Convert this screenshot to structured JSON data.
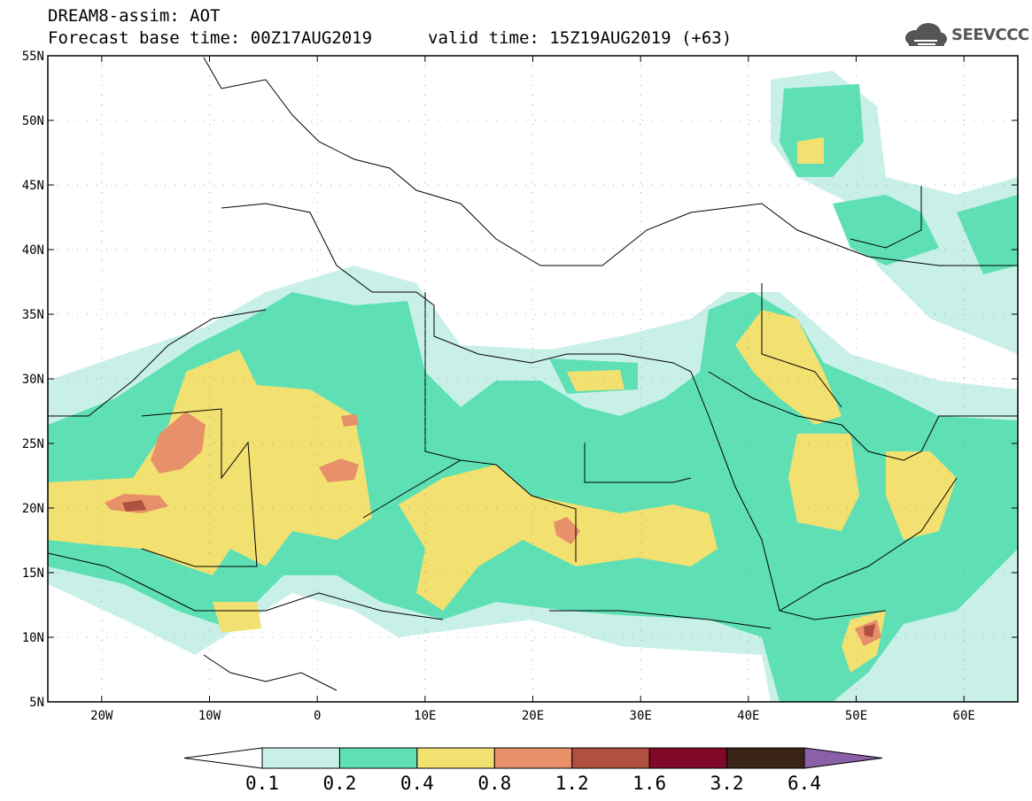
{
  "header": {
    "model_title": "DREAM8-assim: AOT",
    "forecast_base": "Forecast base time: 00Z17AUG2019",
    "valid_time": "valid time: 15Z19AUG2019 (+63)",
    "logo_text": "SEEVCCC"
  },
  "map": {
    "lon_range": [
      -25,
      65
    ],
    "lat_range": [
      5,
      55
    ],
    "lat_ticks": [
      {
        "lat": 55,
        "label": "55N"
      },
      {
        "lat": 50,
        "label": "50N"
      },
      {
        "lat": 45,
        "label": "45N"
      },
      {
        "lat": 40,
        "label": "40N"
      },
      {
        "lat": 35,
        "label": "35N"
      },
      {
        "lat": 30,
        "label": "30N"
      },
      {
        "lat": 25,
        "label": "25N"
      },
      {
        "lat": 20,
        "label": "20N"
      },
      {
        "lat": 15,
        "label": "15N"
      },
      {
        "lat": 10,
        "label": "10N"
      },
      {
        "lat": 5,
        "label": "5N"
      }
    ],
    "lon_ticks": [
      {
        "lon": -20,
        "label": "20W"
      },
      {
        "lon": -10,
        "label": "10W"
      },
      {
        "lon": 0,
        "label": "0"
      },
      {
        "lon": 10,
        "label": "10E"
      },
      {
        "lon": 20,
        "label": "20E"
      },
      {
        "lon": 30,
        "label": "30E"
      },
      {
        "lon": 40,
        "label": "40E"
      },
      {
        "lon": 50,
        "label": "50E"
      },
      {
        "lon": 60,
        "label": "60E"
      }
    ],
    "grid": true
  },
  "colorbar": {
    "levels": [
      "0.1",
      "0.2",
      "0.4",
      "0.8",
      "1.2",
      "1.6",
      "3.2",
      "6.4"
    ],
    "colors": [
      "#c8f0e8",
      "#5ee0b4",
      "#f2e070",
      "#e8906a",
      "#b05040",
      "#800828",
      "#3a2418",
      "#8a60a8"
    ],
    "under_color": "#ffffff"
  }
}
